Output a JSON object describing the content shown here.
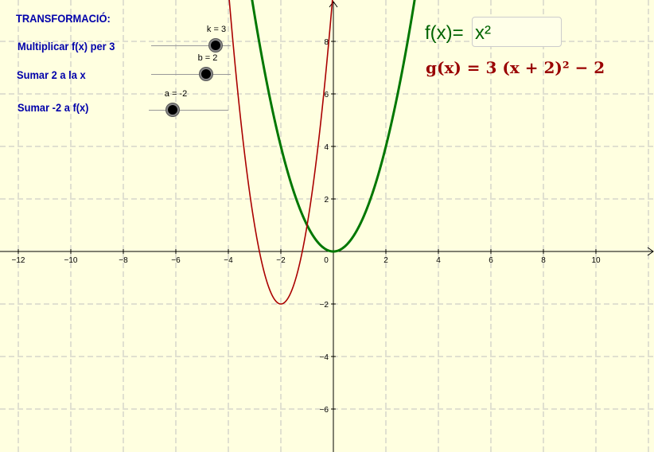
{
  "title": "TRANSFORMACIÓ:",
  "sliders": [
    {
      "label": "Multiplicar f(x) per 3",
      "value_label": "k = 3",
      "value": 3
    },
    {
      "label": "Sumar  2 a la x",
      "value_label": "b = 2",
      "value": 2
    },
    {
      "label": "Sumar -2 a f(x)",
      "value_label": "a = -2",
      "value": -2
    }
  ],
  "f_label": "f(x)=",
  "f_input_value": "x²",
  "g_label": "g(x) = 3  (x + 2)² − 2",
  "colors": {
    "background": "#ffffe0",
    "grid": "#c0c0c0",
    "axis": "#000000",
    "f_curve": "#007700",
    "g_curve": "#aa0000",
    "text_blue": "#0000aa"
  },
  "chart_data": {
    "type": "line",
    "xlim": [
      -12.6,
      12.3
    ],
    "ylim": [
      -7.5,
      9.5
    ],
    "grid": true,
    "x_ticks": [
      -12,
      -10,
      -8,
      -6,
      -4,
      -2,
      0,
      2,
      4,
      6,
      8,
      10
    ],
    "x_tick_labels": [
      "−12",
      "−10",
      "−8",
      "−6",
      "−4",
      "−2",
      "0",
      "2",
      "4",
      "6",
      "8",
      "10"
    ],
    "y_ticks": [
      -6,
      -4,
      -2,
      2,
      4,
      6,
      8
    ],
    "y_tick_labels": [
      "−6",
      "−4",
      "−2",
      "2",
      "4",
      "6",
      "8"
    ],
    "series": [
      {
        "name": "f(x)",
        "color": "#007700",
        "a": 1,
        "h": 0,
        "k": 0
      },
      {
        "name": "g(x)",
        "color": "#aa0000",
        "a": 3,
        "h": -2,
        "k": -2
      }
    ]
  }
}
